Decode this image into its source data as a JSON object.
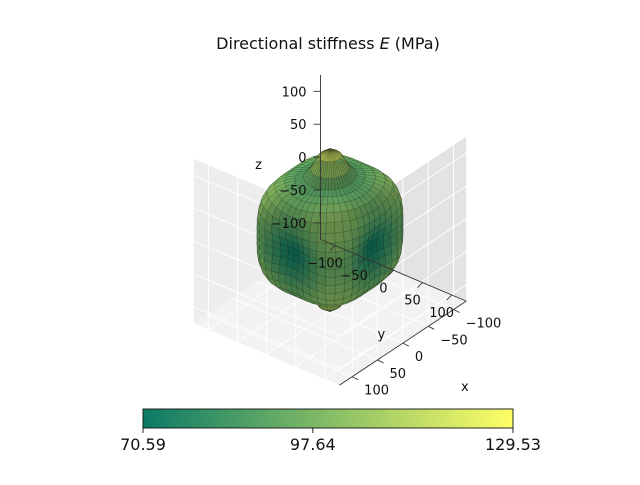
{
  "chart_data": {
    "type": "surface3d",
    "title": "Directional stiffness E (MPa)",
    "title_parts": {
      "prefix": "Directional stiffness ",
      "symbol": "E",
      "suffix": " (MPa)"
    },
    "axes": {
      "x": {
        "label": "x",
        "ticks": [
          -100,
          -50,
          0,
          50,
          100
        ],
        "range": [
          -125,
          125
        ]
      },
      "y": {
        "label": "y",
        "ticks": [
          -100,
          -50,
          0,
          50,
          100
        ],
        "range": [
          -125,
          125
        ]
      },
      "z": {
        "label": "z",
        "ticks": [
          -100,
          -50,
          0,
          50,
          100
        ],
        "range": [
          -125,
          125
        ]
      }
    },
    "grid": true,
    "colormap": {
      "name": "summer",
      "low_color": "#0b7a66",
      "high_color": "#ffff66"
    },
    "colorbar": {
      "orientation": "horizontal",
      "placement": "bottom",
      "min": 70.59,
      "max": 129.53,
      "ticks": [
        70.59,
        97.64,
        129.53
      ],
      "tick_labels": [
        "70.59",
        "97.64",
        "129.53"
      ]
    },
    "surface_value_range": [
      70.59,
      129.53
    ]
  }
}
